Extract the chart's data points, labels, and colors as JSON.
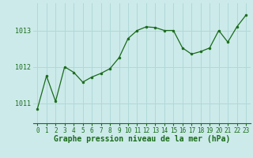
{
  "x": [
    0,
    1,
    2,
    3,
    4,
    5,
    6,
    7,
    8,
    9,
    10,
    11,
    12,
    13,
    14,
    15,
    16,
    17,
    18,
    19,
    20,
    21,
    22,
    23
  ],
  "y": [
    1010.85,
    1011.75,
    1011.05,
    1012.0,
    1011.85,
    1011.58,
    1011.72,
    1011.82,
    1011.95,
    1012.25,
    1012.78,
    1013.0,
    1013.1,
    1013.08,
    1013.0,
    1013.0,
    1012.52,
    1012.35,
    1012.42,
    1012.52,
    1013.0,
    1012.68,
    1013.1,
    1013.42
  ],
  "line_color": "#1a6b1a",
  "marker": "o",
  "marker_size": 2.0,
  "line_width": 0.9,
  "bg_color": "#cceaea",
  "grid_color": "#b0d8d8",
  "tick_color": "#1a6b1a",
  "xlabel": "Graphe pression niveau de la mer (hPa)",
  "xlabel_fontsize": 7,
  "xlabel_color": "#1a6b1a",
  "xlabel_bold": true,
  "yticks": [
    1011,
    1012,
    1013
  ],
  "ylim": [
    1010.45,
    1013.75
  ],
  "xlim": [
    -0.5,
    23.5
  ],
  "xtick_labels": [
    "0",
    "1",
    "2",
    "3",
    "4",
    "5",
    "6",
    "7",
    "8",
    "9",
    "10",
    "11",
    "12",
    "13",
    "14",
    "15",
    "16",
    "17",
    "18",
    "19",
    "20",
    "21",
    "22",
    "23"
  ],
  "tick_fontsize": 5.5,
  "ytick_fontsize": 6.0
}
